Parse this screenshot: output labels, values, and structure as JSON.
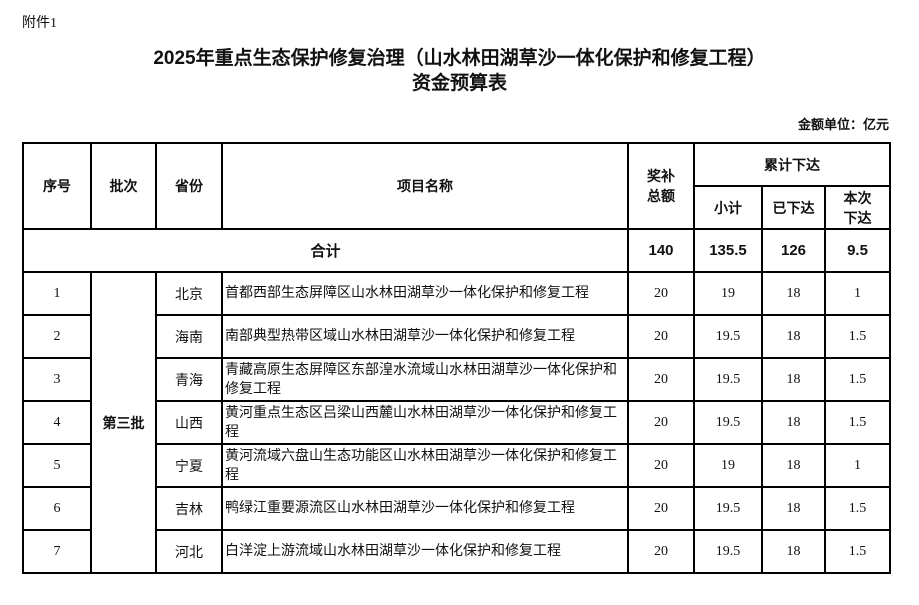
{
  "attachment_label": "附件1",
  "title_line1": "2025年重点生态保护修复治理（山水林田湖草沙一体化保护和修复工程）",
  "title_line2": "资金预算表",
  "unit_label": "金额单位：亿元",
  "headers": {
    "seq": "序号",
    "batch": "批次",
    "province": "省份",
    "project": "项目名称",
    "total_subsidy": "奖补总额",
    "cumulative": "累计下达",
    "subtotal": "小计",
    "issued": "已下达",
    "this_time": "本次下达"
  },
  "total_row": {
    "label": "合计",
    "total_subsidy": "140",
    "subtotal": "135.5",
    "issued": "126",
    "this_time": "9.5"
  },
  "batch_label": "第三批",
  "rows": [
    {
      "seq": "1",
      "province": "北京",
      "project": "首都西部生态屏障区山水林田湖草沙一体化保护和修复工程",
      "total_subsidy": "20",
      "subtotal": "19",
      "issued": "18",
      "this_time": "1"
    },
    {
      "seq": "2",
      "province": "海南",
      "project": "南部典型热带区域山水林田湖草沙一体化保护和修复工程",
      "total_subsidy": "20",
      "subtotal": "19.5",
      "issued": "18",
      "this_time": "1.5"
    },
    {
      "seq": "3",
      "province": "青海",
      "project": "青藏高原生态屏障区东部湟水流域山水林田湖草沙一体化保护和修复工程",
      "total_subsidy": "20",
      "subtotal": "19.5",
      "issued": "18",
      "this_time": "1.5"
    },
    {
      "seq": "4",
      "province": "山西",
      "project": "黄河重点生态区吕梁山西麓山水林田湖草沙一体化保护和修复工程",
      "total_subsidy": "20",
      "subtotal": "19.5",
      "issued": "18",
      "this_time": "1.5"
    },
    {
      "seq": "5",
      "province": "宁夏",
      "project": "黄河流域六盘山生态功能区山水林田湖草沙一体化保护和修复工程",
      "total_subsidy": "20",
      "subtotal": "19",
      "issued": "18",
      "this_time": "1"
    },
    {
      "seq": "6",
      "province": "吉林",
      "project": "鸭绿江重要源流区山水林田湖草沙一体化保护和修复工程",
      "total_subsidy": "20",
      "subtotal": "19.5",
      "issued": "18",
      "this_time": "1.5"
    },
    {
      "seq": "7",
      "province": "河北",
      "project": "白洋淀上游流域山水林田湖草沙一体化保护和修复工程",
      "total_subsidy": "20",
      "subtotal": "19.5",
      "issued": "18",
      "this_time": "1.5"
    }
  ]
}
